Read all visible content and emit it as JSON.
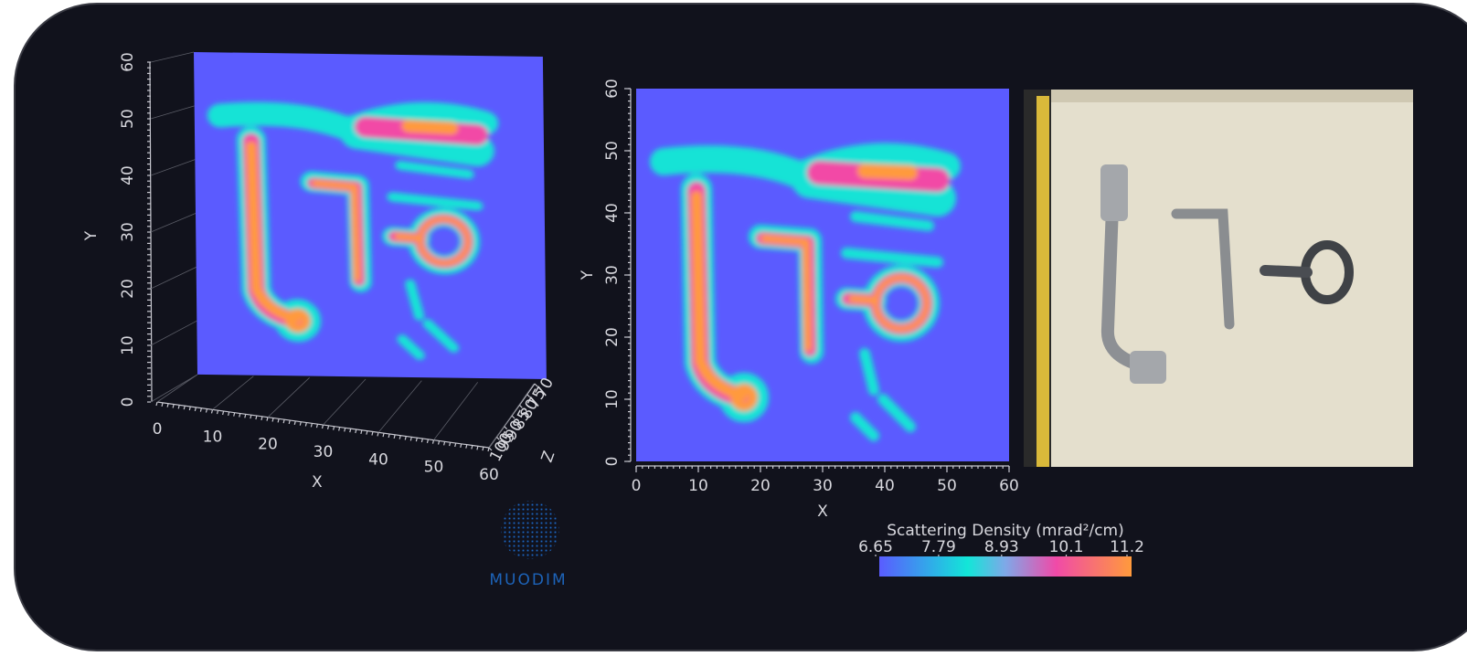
{
  "plot3d": {
    "x_label": "X",
    "y_label": "Y",
    "z_label": "Z",
    "xticks": [
      0,
      10,
      20,
      30,
      40,
      50,
      60
    ],
    "yticks": [
      0,
      10,
      20,
      30,
      40,
      50,
      60
    ],
    "zticks": [
      100,
      95,
      90,
      85,
      80,
      75,
      70
    ]
  },
  "plot2d": {
    "x_label": "X",
    "y_label": "Y",
    "xticks": [
      0,
      10,
      20,
      30,
      40,
      50,
      60
    ],
    "yticks": [
      0,
      10,
      20,
      30,
      40,
      50,
      60
    ]
  },
  "colorbar": {
    "title": "Scattering Density (mrad²/cm)",
    "ticks": [
      6.65,
      7.79,
      8.93,
      10.1,
      11.2
    ]
  },
  "logo": {
    "text": "MUODIM"
  }
}
